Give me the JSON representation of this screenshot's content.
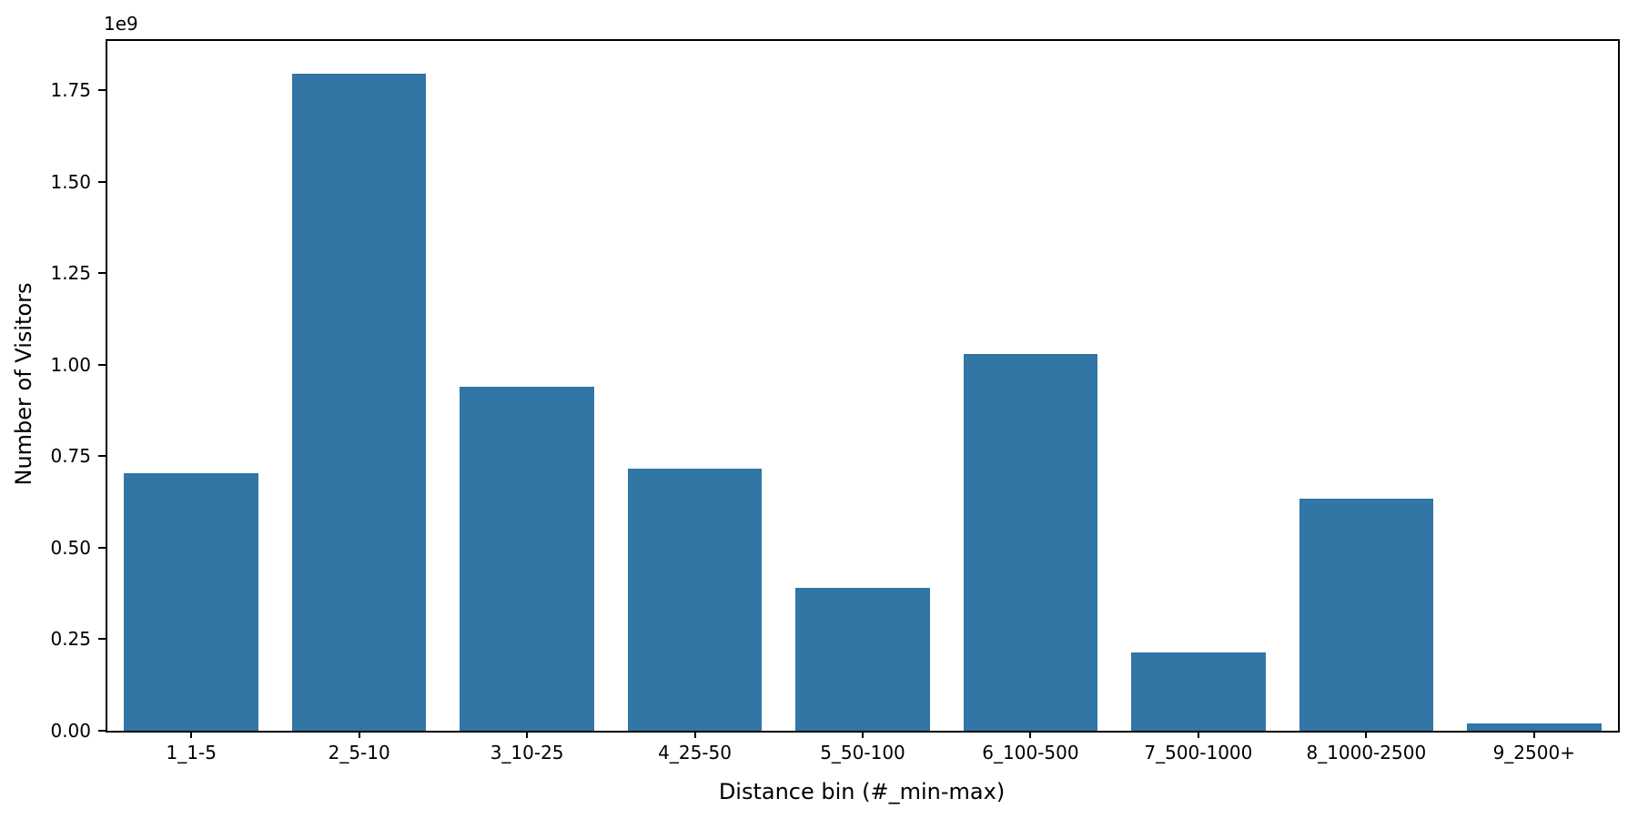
{
  "chart_data": {
    "type": "bar",
    "title": "",
    "categories": [
      "1_1-5",
      "2_5-10",
      "3_10-25",
      "4_25-50",
      "5_50-100",
      "6_100-500",
      "7_500-1000",
      "8_1000-2500",
      "9_2500+"
    ],
    "values": [
      705000000,
      1795000000,
      940000000,
      715000000,
      390000000,
      1030000000,
      215000000,
      635000000,
      20000000
    ],
    "xlabel": "Distance bin (#_min-max)",
    "ylabel": "Number of Visitors",
    "offset_text": "1e9",
    "ylim": [
      0,
      1885000000
    ],
    "yticks": [
      0,
      250000000,
      500000000,
      750000000,
      1000000000,
      1250000000,
      1500000000,
      1750000000
    ],
    "ytick_labels": [
      "0.00",
      "0.25",
      "0.50",
      "0.75",
      "1.00",
      "1.25",
      "1.50",
      "1.75"
    ],
    "bar_color": "#3176A4",
    "axis_color": "#000000",
    "background_color": "#ffffff",
    "grid": false,
    "legend": false,
    "bar_width_ratio": 0.8
  }
}
